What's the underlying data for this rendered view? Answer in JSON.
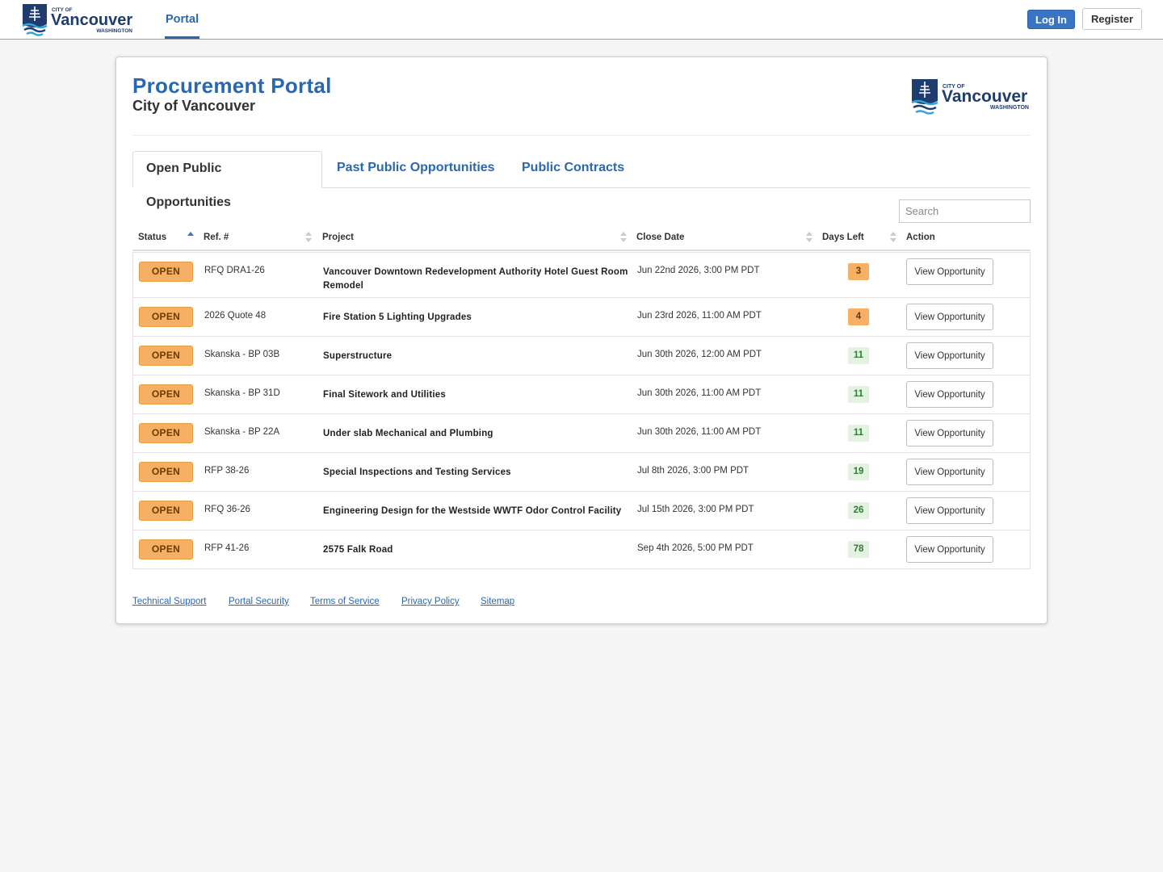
{
  "nav": {
    "logo": {
      "top_text": "CITY OF",
      "name": "Vancouver",
      "sub": "WASHINGTON"
    },
    "portal_label": "Portal",
    "login_label": "Log In",
    "register_label": "Register"
  },
  "header": {
    "title": "Procurement Portal",
    "subtitle": "City of Vancouver",
    "logo": {
      "top_text": "CITY OF",
      "name": "Vancouver",
      "sub": "WASHINGTON"
    }
  },
  "tabs": [
    {
      "label": "Open Public Opportunities",
      "active": true
    },
    {
      "label": "Past Public Opportunities",
      "active": false
    },
    {
      "label": "Public Contracts",
      "active": false
    }
  ],
  "search": {
    "placeholder": "Search",
    "value": ""
  },
  "table": {
    "columns": [
      "Status",
      "Ref. #",
      "Project",
      "Close Date",
      "Days Left",
      "Action"
    ],
    "rows": [
      {
        "status": "OPEN",
        "ref": "RFQ DRA1-26",
        "project": "Vancouver Downtown Redevelopment Authority Hotel Guest Room Remodel",
        "close_date": "Jun 22nd 2026, 3:00 PM PDT",
        "days_left": "3",
        "days_level": "warn",
        "action": "View Opportunity"
      },
      {
        "status": "OPEN",
        "ref": "2026 Quote 48",
        "project": "Fire Station 5 Lighting Upgrades",
        "close_date": "Jun 23rd 2026, 11:00 AM PDT",
        "days_left": "4",
        "days_level": "warn",
        "action": "View Opportunity"
      },
      {
        "status": "OPEN",
        "ref": "Skanska - BP 03B",
        "project": "Superstructure",
        "close_date": "Jun 30th 2026, 12:00 AM PDT",
        "days_left": "11",
        "days_level": "ok",
        "action": "View Opportunity"
      },
      {
        "status": "OPEN",
        "ref": "Skanska - BP 31D",
        "project": "Final Sitework and Utilities",
        "close_date": "Jun 30th 2026, 11:00 AM PDT",
        "days_left": "11",
        "days_level": "ok",
        "action": "View Opportunity"
      },
      {
        "status": "OPEN",
        "ref": "Skanska - BP 22A",
        "project": "Under slab Mechanical and Plumbing",
        "close_date": "Jun 30th 2026, 11:00 AM PDT",
        "days_left": "11",
        "days_level": "ok",
        "action": "View Opportunity"
      },
      {
        "status": "OPEN",
        "ref": "RFP 38-26",
        "project": "Special Inspections and Testing Services",
        "close_date": "Jul 8th 2026, 3:00 PM PDT",
        "days_left": "19",
        "days_level": "ok",
        "action": "View Opportunity"
      },
      {
        "status": "OPEN",
        "ref": "RFQ 36-26",
        "project": "Engineering Design for the Westside WWTF Odor Control Facility",
        "close_date": "Jul 15th 2026, 3:00 PM PDT",
        "days_left": "26",
        "days_level": "ok",
        "action": "View Opportunity"
      },
      {
        "status": "OPEN",
        "ref": "RFP 41-26",
        "project": "2575 Falk Road",
        "close_date": "Sep 4th 2026, 5:00 PM PDT",
        "days_left": "78",
        "days_level": "ok",
        "action": "View Opportunity"
      }
    ]
  },
  "footer": {
    "links": [
      "Technical Support",
      "Portal Security",
      "Terms of Service",
      "Privacy Policy",
      "Sitemap"
    ]
  },
  "colors": {
    "brand_blue": "#2a67b1",
    "open_orange": "#f5b065",
    "days_green_bg": "#e4f2e2",
    "days_green_fg": "#2e7d32"
  }
}
